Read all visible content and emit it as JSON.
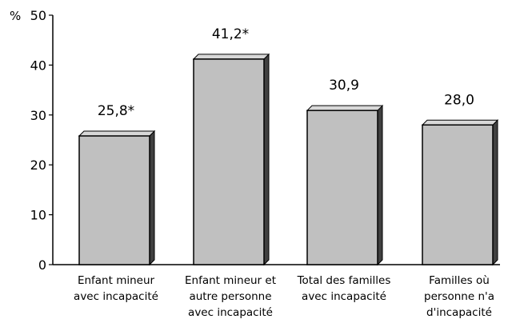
{
  "chart_data": {
    "type": "bar",
    "y_unit_label": "%",
    "ylim": [
      0,
      50
    ],
    "yticks": [
      0,
      10,
      20,
      30,
      40,
      50
    ],
    "grid": false,
    "categories": [
      [
        "Enfant mineur",
        "avec incapacité"
      ],
      [
        "Enfant mineur et",
        "autre personne",
        "avec incapacité"
      ],
      [
        "Total des familles",
        "avec incapacité"
      ],
      [
        "Familles où",
        "personne n'a",
        "d'incapacité"
      ]
    ],
    "values": [
      25.8,
      41.2,
      30.9,
      28.0
    ],
    "value_labels": [
      "25,8*",
      "41,2*",
      "30,9",
      "28,0"
    ],
    "colors": {
      "bar_face": "#c0c0c0",
      "bar_side": "#404040",
      "bar_top": "#d8d8d8"
    }
  }
}
